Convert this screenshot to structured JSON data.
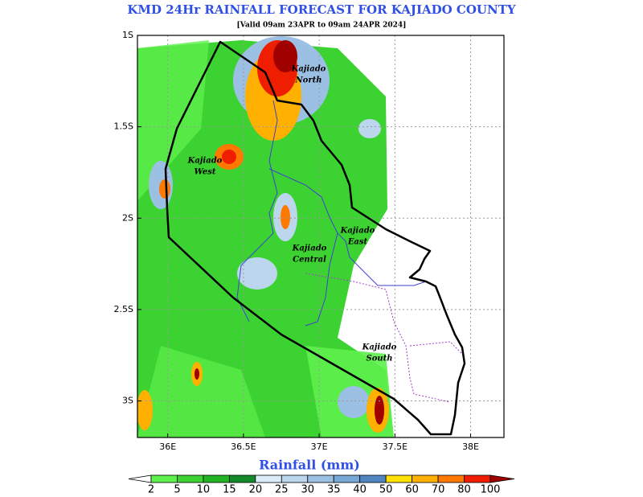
{
  "title": "KMD 24Hr RAINFALL FORECAST FOR KAJIADO COUNTY",
  "subtitle": "[Valid 09am 23APR to 09am 24APR 2024]",
  "map": {
    "xlim": [
      35.8,
      38.22
    ],
    "ylim": [
      -3.2,
      -1
    ],
    "xticks": [
      {
        "value": 36,
        "label": "36E"
      },
      {
        "value": 36.5,
        "label": "36.5E"
      },
      {
        "value": 37,
        "label": "37E"
      },
      {
        "value": 37.5,
        "label": "37.5E"
      },
      {
        "value": 38,
        "label": "38E"
      }
    ],
    "yticks": [
      {
        "value": -1,
        "label": "1S"
      },
      {
        "value": -1.5,
        "label": "1.5S"
      },
      {
        "value": -2,
        "label": "2S"
      },
      {
        "value": -2.5,
        "label": "2.5S"
      },
      {
        "value": -3,
        "label": "3S"
      }
    ],
    "grid": true,
    "regions": [
      {
        "lines": [
          "Kajiado",
          "North"
        ]
      },
      {
        "lines": [
          "Kajiado",
          "West"
        ]
      },
      {
        "lines": [
          "Kajiado",
          "Central"
        ]
      },
      {
        "lines": [
          "Kajiado",
          "East"
        ]
      },
      {
        "lines": [
          "Kajiado",
          "South"
        ]
      }
    ]
  },
  "colorbar": {
    "title": "Rainfall (mm)",
    "levels": [
      2,
      5,
      10,
      15,
      20,
      25,
      30,
      35,
      40,
      50,
      60,
      70,
      80,
      100
    ],
    "colors": [
      "#ffffff",
      "#5ef04c",
      "#3cd332",
      "#22b323",
      "#138a2a",
      "#dcecf8",
      "#bcd6ee",
      "#9cc0e4",
      "#78a8d6",
      "#4f86c2",
      "#ffe000",
      "#ffb000",
      "#ff7800",
      "#f01e00",
      "#a00000"
    ]
  }
}
